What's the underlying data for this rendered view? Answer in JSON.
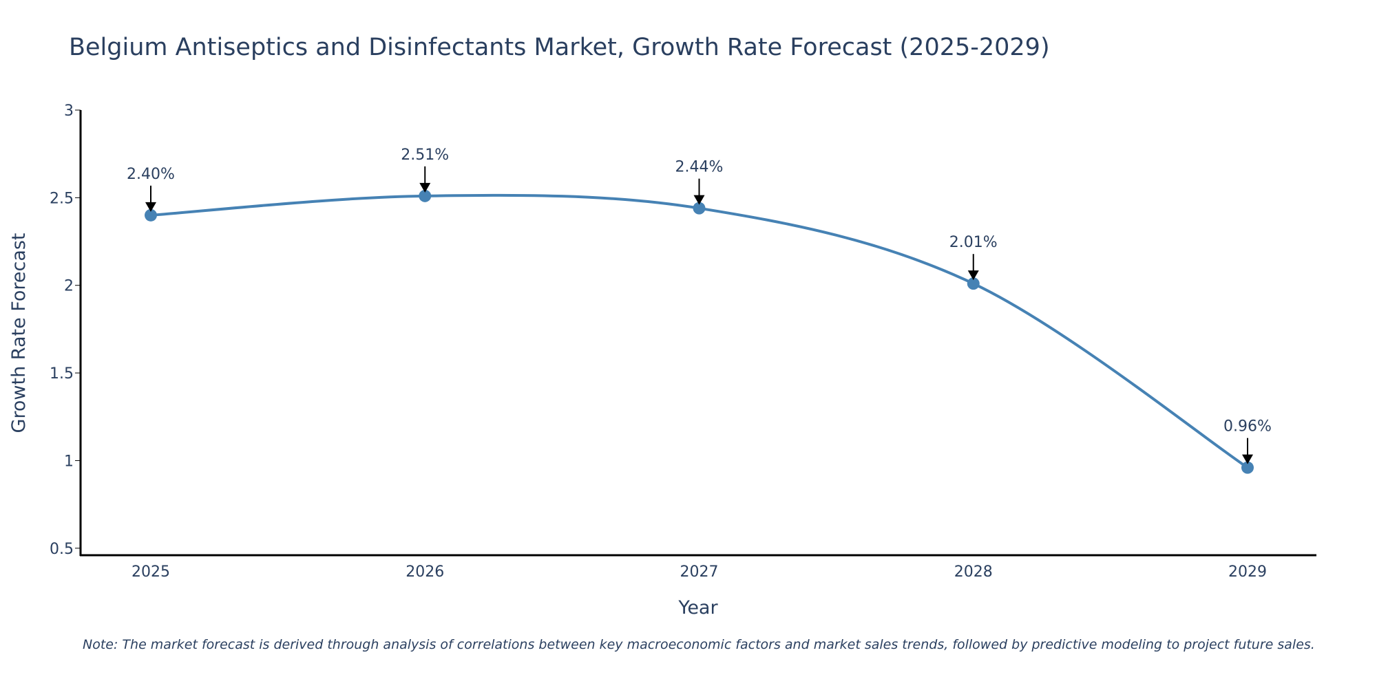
{
  "chart_data": {
    "type": "line",
    "title": "Belgium Antiseptics and Disinfectants Market, Growth Rate Forecast (2025-2029)",
    "xlabel": "Year",
    "ylabel": "Growth Rate Forecast",
    "categories": [
      "2025",
      "2026",
      "2027",
      "2028",
      "2029"
    ],
    "series": [
      {
        "name": "Growth Rate Forecast",
        "values": [
          2.4,
          2.51,
          2.44,
          2.01,
          0.96
        ],
        "color": "#4682b4"
      }
    ],
    "data_labels": [
      "2.40%",
      "2.51%",
      "2.44%",
      "2.01%",
      "0.96%"
    ],
    "ylim": [
      0.46,
      3.0
    ],
    "yticks": [
      0.5,
      1,
      1.5,
      2,
      2.5,
      3
    ],
    "ytick_labels": [
      "0.5",
      "1",
      "1.5",
      "2",
      "2.5",
      "3"
    ],
    "grid": false,
    "line_shape": "smooth",
    "note": "Note: The market forecast is derived through analysis of correlations between key macroeconomic factors and market sales trends, followed by predictive modeling to project future sales.",
    "colors": {
      "line": "#4682b4",
      "marker": "#4682b4",
      "arrow": "#000000",
      "text": "#2a3f5f",
      "axis": "#000000"
    }
  }
}
